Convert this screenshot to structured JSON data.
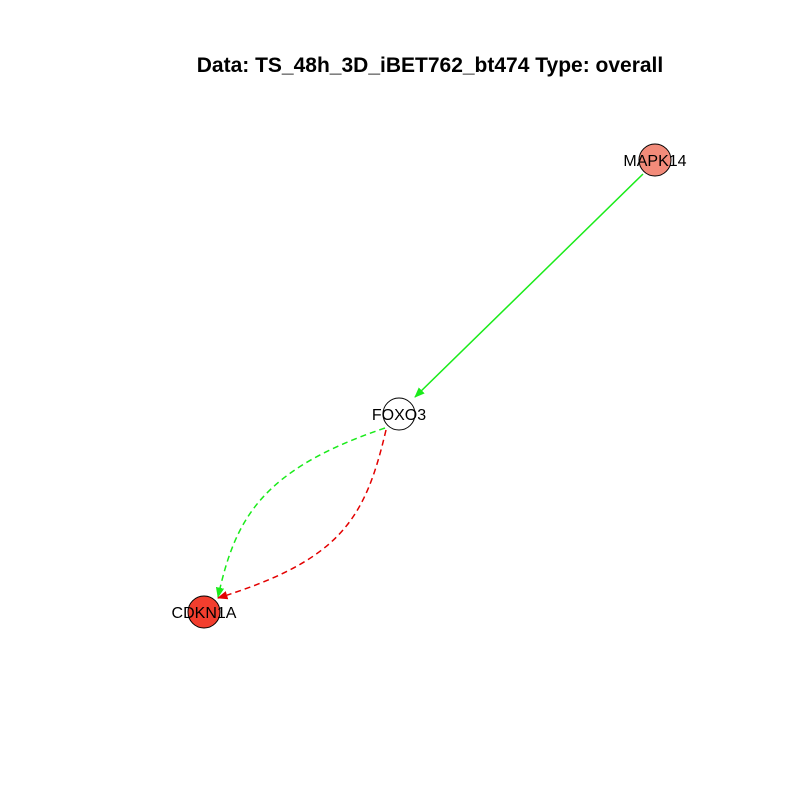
{
  "title": "Data: TS_48h_3D_iBET762_bt474 Type: overall",
  "nodes": [
    {
      "id": "MAPK14",
      "label": "MAPK14",
      "fill": "#f28b7a"
    },
    {
      "id": "FOXO3",
      "label": "FOXO3",
      "fill": "#ffffff"
    },
    {
      "id": "CDKN1A",
      "label": "CDKN1A",
      "fill": "#f23e2e"
    }
  ],
  "edges": [
    {
      "from": "MAPK14",
      "to": "FOXO3",
      "color": "#1aeb1a",
      "style": "solid"
    },
    {
      "from": "FOXO3",
      "to": "CDKN1A",
      "color": "#1aeb1a",
      "style": "dashed"
    },
    {
      "from": "FOXO3",
      "to": "CDKN1A",
      "color": "#e30000",
      "style": "dashed"
    }
  ]
}
